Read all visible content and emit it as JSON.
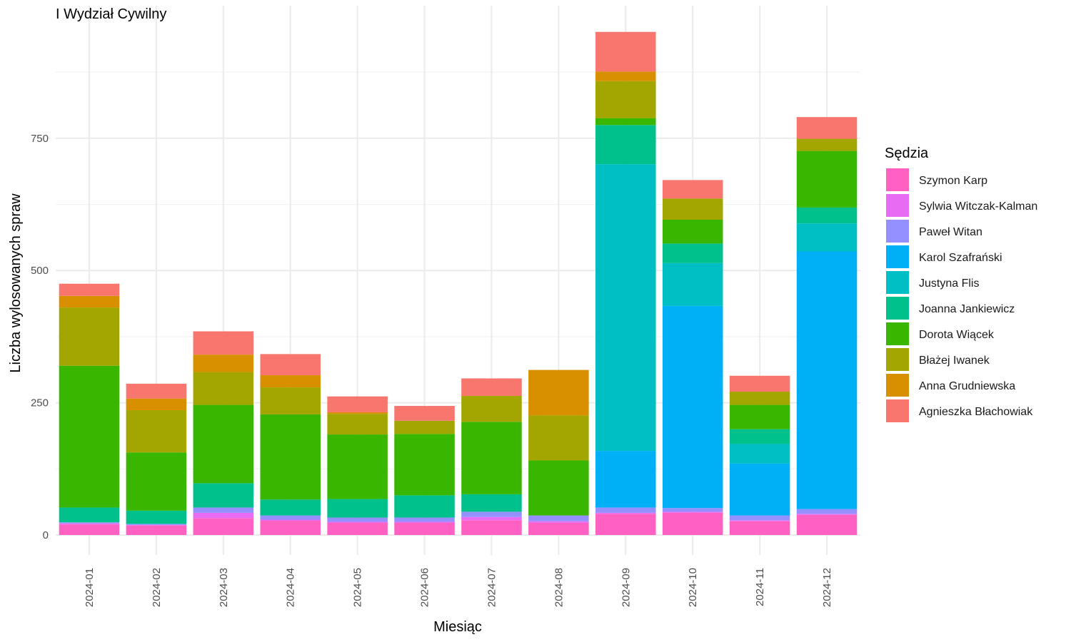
{
  "chart_data": {
    "type": "bar",
    "stacked": true,
    "title": "I Wydział Cywilny",
    "xlabel": "Miesiąc",
    "ylabel": "Liczba wylosowanych spraw",
    "ylim": [
      0,
      960
    ],
    "yticks": [
      0,
      250,
      500,
      750
    ],
    "grid": true,
    "legend_position": "right",
    "legend_title": "Sędzia",
    "categories": [
      "2024-01",
      "2024-02",
      "2024-03",
      "2024-04",
      "2024-05",
      "2024-06",
      "2024-07",
      "2024-08",
      "2024-09",
      "2024-10",
      "2024-11",
      "2024-12"
    ],
    "series": [
      {
        "name": "Szymon Karp",
        "color": "#FF61C3",
        "values": [
          20,
          18,
          32,
          27,
          23,
          23,
          28,
          23,
          40,
          42,
          26,
          38
        ]
      },
      {
        "name": "Sylwia Witczak-Kalman",
        "color": "#E76BF3",
        "values": [
          2,
          1,
          10,
          2,
          2,
          2,
          6,
          3,
          2,
          2,
          2,
          2
        ]
      },
      {
        "name": "Paweł Witan",
        "color": "#9590FF",
        "values": [
          2,
          2,
          10,
          8,
          8,
          8,
          10,
          11,
          10,
          7,
          9,
          9
        ]
      },
      {
        "name": "Karol Szafrański",
        "color": "#00B0F6",
        "values": [
          0,
          0,
          0,
          0,
          0,
          0,
          0,
          0,
          107,
          382,
          98,
          487
        ]
      },
      {
        "name": "Justyna Flis",
        "color": "#00BFC4",
        "values": [
          0,
          0,
          0,
          0,
          0,
          0,
          0,
          0,
          542,
          81,
          37,
          53
        ]
      },
      {
        "name": "Joanna Jankiewicz",
        "color": "#00C08B",
        "values": [
          28,
          25,
          46,
          30,
          35,
          42,
          33,
          0,
          74,
          37,
          28,
          30
        ]
      },
      {
        "name": "Dorota Wiącek",
        "color": "#39B600",
        "values": [
          268,
          110,
          148,
          161,
          122,
          116,
          137,
          104,
          13,
          45,
          46,
          107
        ]
      },
      {
        "name": "Błażej Iwanek",
        "color": "#A3A500",
        "values": [
          110,
          80,
          62,
          51,
          39,
          25,
          49,
          85,
          70,
          40,
          25,
          23
        ]
      },
      {
        "name": "Anna Grudniewska",
        "color": "#D89000",
        "values": [
          22,
          22,
          33,
          23,
          3,
          0,
          0,
          86,
          18,
          0,
          0,
          0
        ]
      },
      {
        "name": "Agnieszka Błachowiak",
        "color": "#F8766D",
        "values": [
          23,
          28,
          44,
          40,
          30,
          28,
          33,
          0,
          75,
          35,
          30,
          41
        ]
      }
    ]
  }
}
